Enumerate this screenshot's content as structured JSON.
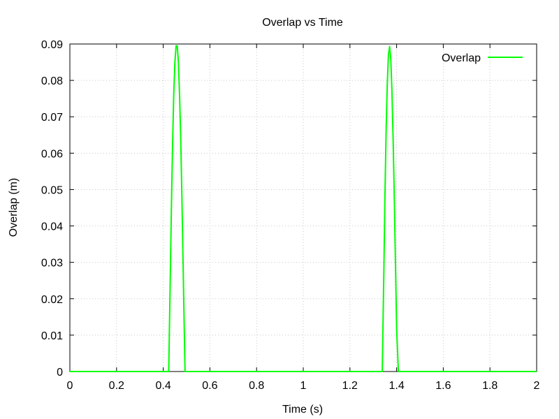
{
  "chart_data": {
    "type": "line",
    "title": "Overlap vs Time",
    "xlabel": "Time (s)",
    "ylabel": "Overlap (m)",
    "xlim": [
      0,
      2
    ],
    "ylim": [
      0,
      0.09
    ],
    "xticks": [
      0,
      0.2,
      0.4,
      0.6,
      0.8,
      1,
      1.2,
      1.4,
      1.6,
      1.8,
      2
    ],
    "xtick_labels": [
      "0",
      "0.2",
      "0.4",
      "0.6",
      "0.8",
      "1",
      "1.2",
      "1.4",
      "1.6",
      "1.8",
      "2"
    ],
    "yticks": [
      0,
      0.01,
      0.02,
      0.03,
      0.04,
      0.05,
      0.06,
      0.07,
      0.08,
      0.09
    ],
    "ytick_labels": [
      "0",
      "0.01",
      "0.02",
      "0.03",
      "0.04",
      "0.05",
      "0.06",
      "0.07",
      "0.08",
      "0.09"
    ],
    "grid": true,
    "legend_position": "top-right",
    "series": [
      {
        "name": "Overlap",
        "color": "#00ff00",
        "x": [
          0,
          0.4235,
          0.4235,
          0.43,
          0.435,
          0.44,
          0.445,
          0.45,
          0.455,
          0.46,
          0.465,
          0.47,
          0.475,
          0.48,
          0.485,
          0.49,
          0.4935,
          0.4935,
          1.3385,
          1.3385,
          1.345,
          1.35,
          1.355,
          1.36,
          1.365,
          1.37,
          1.375,
          1.38,
          1.385,
          1.39,
          1.395,
          1.4,
          1.405,
          1.4075,
          1.4075,
          2
        ],
        "y": [
          0,
          0,
          0.0,
          0.025,
          0.045,
          0.062,
          0.076,
          0.085,
          0.0895,
          0.0895,
          0.085,
          0.076,
          0.064,
          0.048,
          0.03,
          0.012,
          0.0,
          0,
          0,
          0.0,
          0.026,
          0.048,
          0.066,
          0.079,
          0.087,
          0.0893,
          0.086,
          0.077,
          0.064,
          0.048,
          0.03,
          0.012,
          0.004,
          0.0,
          0,
          0
        ]
      }
    ]
  }
}
